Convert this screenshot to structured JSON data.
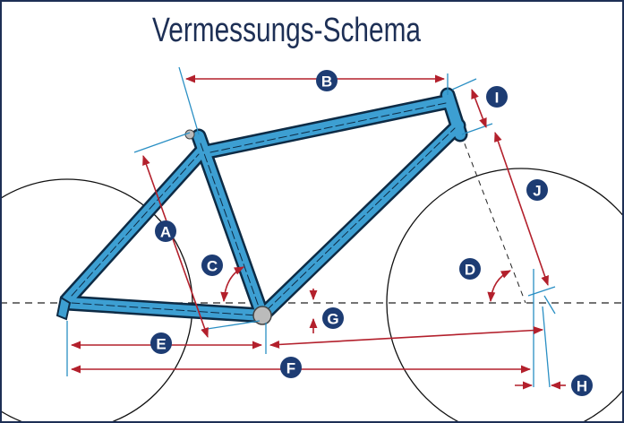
{
  "title": "Vermessungs-Schema",
  "labels": [
    "A",
    "B",
    "C",
    "D",
    "E",
    "F",
    "G",
    "H",
    "I",
    "J"
  ]
}
